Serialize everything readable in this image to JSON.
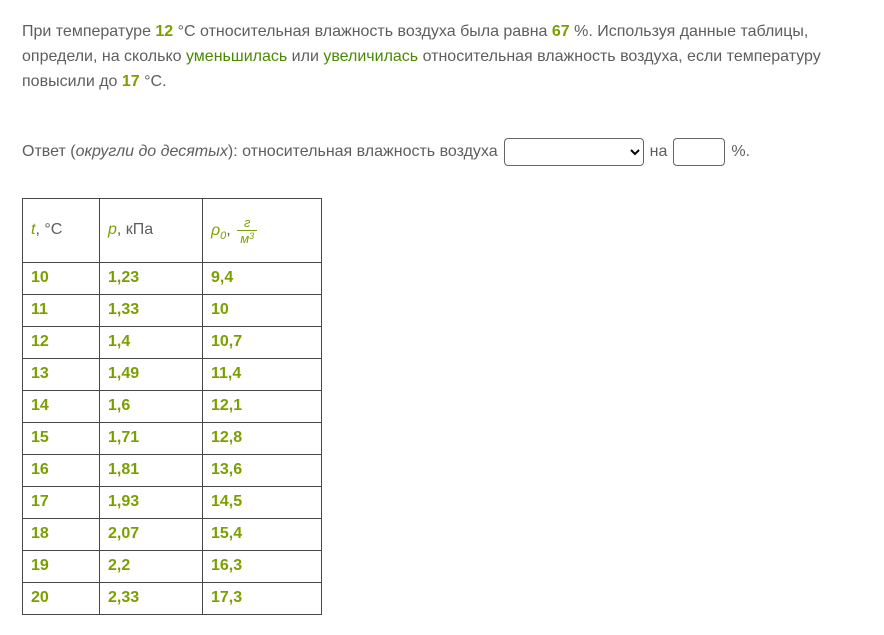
{
  "problem": {
    "p1a": "При температуре ",
    "t1": "12",
    "p1b": " °C относительная влажность воздуха была равна ",
    "rh": "67",
    "p1c": " %. Используя данные таблицы, определи, на сколько ",
    "kw1": "уменьшилась",
    "p1d": " или ",
    "kw2": "увеличилась",
    "p1e": " относительная влажность воздуха, если температуру повысили до ",
    "t2": "17",
    "p1f": " °C."
  },
  "answer": {
    "label_a": "Ответ (",
    "label_em": "округли до десятых",
    "label_b": "): относительная влажность воздуха",
    "na": "на",
    "pct": "%."
  },
  "table": {
    "hdr": {
      "t_var": "t",
      "t_unit": ", °C",
      "p_var": "p",
      "p_unit": ", кПа",
      "rho_var": "ρ",
      "rho_sub": "0",
      "rho_sep": ", ",
      "frac_top": "г",
      "frac_bot_base": "м",
      "frac_bot_exp": "3"
    },
    "rows": [
      {
        "t": "10",
        "p": "1,23",
        "rho": "9,4"
      },
      {
        "t": "11",
        "p": "1,33",
        "rho": "10"
      },
      {
        "t": "12",
        "p": "1,4",
        "rho": "10,7"
      },
      {
        "t": "13",
        "p": "1,49",
        "rho": "11,4"
      },
      {
        "t": "14",
        "p": "1,6",
        "rho": "12,1"
      },
      {
        "t": "15",
        "p": "1,71",
        "rho": "12,8"
      },
      {
        "t": "16",
        "p": "1,81",
        "rho": "13,6"
      },
      {
        "t": "17",
        "p": "1,93",
        "rho": "14,5"
      },
      {
        "t": "18",
        "p": "2,07",
        "rho": "15,4"
      },
      {
        "t": "19",
        "p": "2,2",
        "rho": "16,3"
      },
      {
        "t": "20",
        "p": "2,33",
        "rho": "17,3"
      }
    ]
  },
  "style": {
    "highlight_color": "#7aa000",
    "text_color": "#5e5e5e",
    "border_color": "#474747"
  }
}
